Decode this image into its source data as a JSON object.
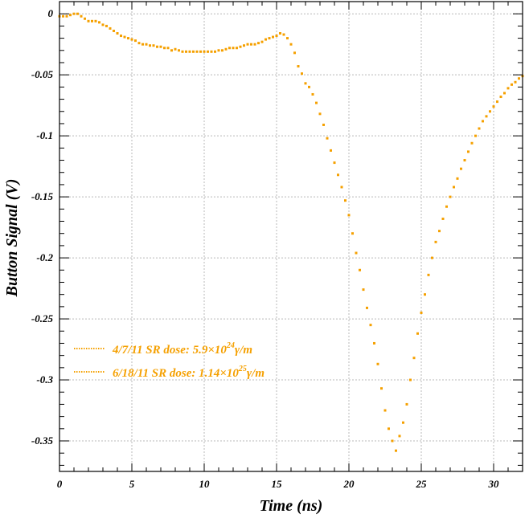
{
  "chart_data": {
    "type": "scatter",
    "xlabel": "Time (ns)",
    "ylabel": "Button Signal (V)",
    "xlim": [
      0,
      32
    ],
    "ylim": [
      -0.375,
      0.01
    ],
    "x_ticks": [
      0,
      5,
      10,
      15,
      20,
      25,
      30
    ],
    "x_tick_labels": [
      "0",
      "5",
      "10",
      "15",
      "20",
      "25",
      "30"
    ],
    "y_ticks": [
      0,
      -0.05,
      -0.1,
      -0.15,
      -0.2,
      -0.25,
      -0.3,
      -0.35
    ],
    "y_tick_labels": [
      "0",
      "-0.05",
      "-0.1",
      "-0.15",
      "-0.2",
      "-0.25",
      "-0.3",
      "-0.35"
    ],
    "grid": true,
    "legend_position": "bottom-left",
    "color": "#f5a000",
    "series": [
      {
        "legend": {
          "prefix": "4/7/11 SR dose: 5.9×10",
          "sup": "24",
          "suffix": "γ/m"
        },
        "x": [
          0,
          0.5,
          1.0,
          1.5,
          2.0,
          2.5,
          3.0,
          3.5,
          4.0,
          4.5,
          5.0,
          5.5,
          6.0,
          6.5,
          7.0,
          7.5,
          8.0,
          8.5,
          9.0,
          9.5,
          10.0,
          10.5,
          11.0,
          11.5,
          12.0,
          12.5,
          13.0,
          13.5,
          14.0,
          14.5,
          15.0,
          15.5,
          16.0,
          16.5,
          17.0,
          17.5,
          18.0,
          18.5,
          19.0,
          19.5,
          20.0,
          20.5,
          21.0,
          21.5,
          22.0,
          22.5,
          23.0,
          23.5,
          24.0,
          24.5,
          25.0,
          25.5,
          26.0,
          26.5,
          27.0,
          27.5,
          28.0,
          28.5,
          29.0,
          29.5,
          30.0,
          30.5,
          31.0,
          31.5,
          32.0
        ],
        "y": [
          -0.002,
          -0.002,
          0.0,
          -0.002,
          -0.006,
          -0.006,
          -0.009,
          -0.012,
          -0.016,
          -0.019,
          -0.021,
          -0.024,
          -0.025,
          -0.026,
          -0.027,
          -0.028,
          -0.029,
          -0.031,
          -0.031,
          -0.031,
          -0.031,
          -0.031,
          -0.03,
          -0.029,
          -0.028,
          -0.027,
          -0.025,
          -0.025,
          -0.023,
          -0.02,
          -0.018,
          -0.017,
          -0.025,
          -0.043,
          -0.057,
          -0.066,
          -0.082,
          -0.102,
          -0.122,
          -0.142,
          -0.165,
          -0.196,
          -0.226,
          -0.255,
          -0.287,
          -0.325,
          -0.35,
          -0.346,
          -0.32,
          -0.282,
          -0.245,
          -0.214,
          -0.187,
          -0.168,
          -0.15,
          -0.135,
          -0.12,
          -0.106,
          -0.094,
          -0.084,
          -0.076,
          -0.068,
          -0.061,
          -0.056,
          -0.051
        ]
      },
      {
        "legend": {
          "prefix": "6/18/11 SR dose: 1.14×10",
          "sup": "25",
          "suffix": "γ/m"
        },
        "x": [
          0.25,
          0.75,
          1.25,
          1.75,
          2.25,
          2.75,
          3.25,
          3.75,
          4.25,
          4.75,
          5.25,
          5.75,
          6.25,
          6.75,
          7.25,
          7.75,
          8.25,
          8.75,
          9.25,
          9.75,
          10.25,
          10.75,
          11.25,
          11.75,
          12.25,
          12.75,
          13.25,
          13.75,
          14.25,
          14.75,
          15.25,
          15.75,
          16.25,
          16.75,
          17.25,
          17.75,
          18.25,
          18.75,
          19.25,
          19.75,
          20.25,
          20.75,
          21.25,
          21.75,
          22.25,
          22.75,
          23.25,
          23.75,
          24.25,
          24.75,
          25.25,
          25.75,
          26.25,
          26.75,
          27.25,
          27.75,
          28.25,
          28.75,
          29.25,
          29.75,
          30.25,
          30.75,
          31.25,
          31.75
        ],
        "y": [
          -0.002,
          -0.001,
          0.0,
          -0.004,
          -0.006,
          -0.007,
          -0.01,
          -0.014,
          -0.018,
          -0.02,
          -0.022,
          -0.025,
          -0.026,
          -0.027,
          -0.028,
          -0.03,
          -0.03,
          -0.031,
          -0.031,
          -0.031,
          -0.031,
          -0.031,
          -0.03,
          -0.028,
          -0.028,
          -0.026,
          -0.025,
          -0.024,
          -0.021,
          -0.019,
          -0.016,
          -0.02,
          -0.032,
          -0.049,
          -0.06,
          -0.073,
          -0.091,
          -0.112,
          -0.132,
          -0.153,
          -0.18,
          -0.21,
          -0.241,
          -0.27,
          -0.307,
          -0.34,
          -0.358,
          -0.335,
          -0.3,
          -0.262,
          -0.23,
          -0.2,
          -0.178,
          -0.158,
          -0.142,
          -0.127,
          -0.113,
          -0.1,
          -0.088,
          -0.08,
          -0.072,
          -0.065,
          -0.058,
          -0.053
        ]
      }
    ]
  }
}
